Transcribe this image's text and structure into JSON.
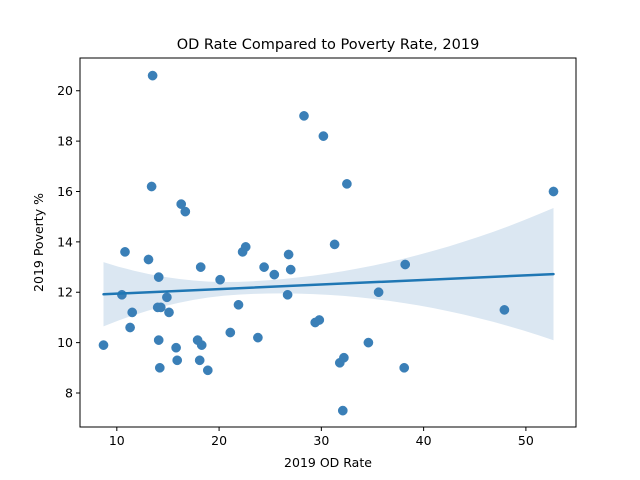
{
  "chart_data": {
    "type": "scatter",
    "title": "OD Rate Compared to Poverty Rate, 2019",
    "xlabel": "2019 OD Rate",
    "ylabel": "2019 Poverty %",
    "xlim": [
      6.4,
      54.9
    ],
    "ylim": [
      6.65,
      21.3
    ],
    "xticks": [
      10,
      20,
      30,
      40,
      50
    ],
    "yticks": [
      8,
      10,
      12,
      14,
      16,
      18,
      20
    ],
    "grid": false,
    "legend": "none",
    "point_color": "#3a7fb7",
    "line_color": "#1f77b4",
    "band_color": "#dbe7f2",
    "x": [
      8.7,
      10.5,
      10.8,
      11.3,
      11.5,
      13.1,
      13.4,
      13.5,
      14.0,
      14.1,
      14.1,
      14.2,
      14.3,
      14.9,
      15.1,
      15.8,
      15.9,
      16.3,
      16.7,
      17.9,
      18.1,
      18.2,
      18.3,
      18.9,
      20.1,
      21.1,
      21.9,
      22.3,
      22.6,
      23.8,
      24.4,
      25.4,
      26.7,
      26.8,
      27.0,
      28.3,
      29.4,
      29.8,
      30.2,
      31.3,
      31.8,
      32.1,
      32.2,
      32.5,
      34.6,
      35.6,
      38.1,
      38.2,
      47.9,
      52.7
    ],
    "y": [
      9.9,
      11.9,
      13.6,
      10.6,
      11.2,
      13.3,
      16.2,
      20.6,
      11.4,
      10.1,
      12.6,
      9.0,
      11.4,
      11.8,
      11.2,
      9.8,
      9.3,
      15.5,
      15.2,
      10.1,
      9.3,
      13.0,
      9.9,
      8.9,
      12.5,
      10.4,
      11.5,
      13.6,
      13.8,
      10.2,
      13.0,
      12.7,
      11.9,
      13.5,
      12.9,
      19.0,
      10.8,
      10.9,
      18.2,
      13.9,
      9.2,
      7.3,
      9.4,
      16.3,
      10.0,
      12.0,
      9.0,
      13.1,
      11.3,
      16.0
    ],
    "regression": {
      "x": [
        8.7,
        52.7
      ],
      "y": [
        11.92,
        12.72
      ],
      "ci_upper": [
        13.3,
        15.3
      ],
      "ci_lower": [
        10.75,
        10.05
      ]
    }
  }
}
